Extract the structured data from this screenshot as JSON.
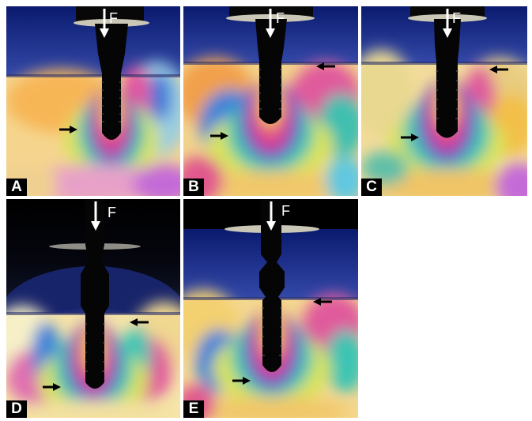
{
  "figure": {
    "panels": [
      {
        "label": "A",
        "force_label": "F"
      },
      {
        "label": "B",
        "force_label": "F"
      },
      {
        "label": "C",
        "force_label": "F"
      },
      {
        "label": "D",
        "force_label": "F"
      },
      {
        "label": "E",
        "force_label": "F"
      }
    ]
  }
}
